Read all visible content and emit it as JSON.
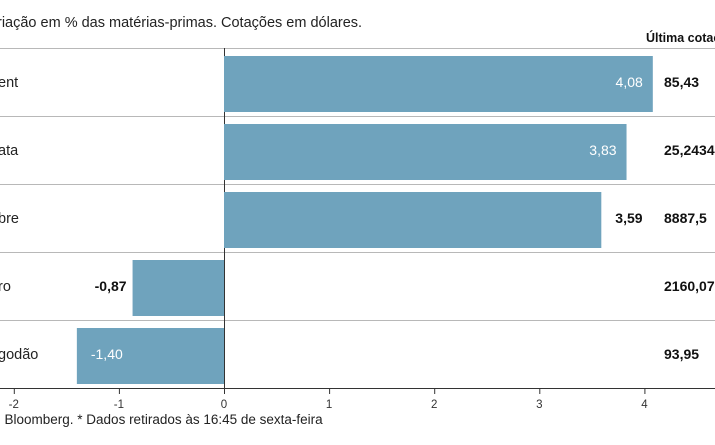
{
  "header": {
    "subtitle": "riação em % das matérias-primas. Cotações em dólares.",
    "quote_column_title": "Última cotaç"
  },
  "footer": {
    "source": ": Bloomberg.  * Dados retirados às 16:45 de sexta-feira"
  },
  "colors": {
    "bar": "#6fa3bd",
    "grid": "#b8b8b8",
    "axis": "#333333"
  },
  "chart_data": {
    "type": "bar",
    "orientation": "horizontal",
    "categories": [
      "ent",
      "ata",
      "bre",
      "ro",
      "godão"
    ],
    "values": [
      4.08,
      3.83,
      3.59,
      -0.87,
      -1.4
    ],
    "value_labels": [
      "4,08",
      "3,83",
      "3,59",
      "-0,87",
      "-1,40"
    ],
    "last_quotes": [
      "85,43",
      "25,2434",
      "8887,5",
      "2160,07",
      "93,95"
    ],
    "xlim": [
      -2.1,
      4.7
    ],
    "xticks": [
      -2,
      -1,
      0,
      1,
      2,
      3,
      4
    ],
    "xtick_labels": [
      "-2",
      "-1",
      "0",
      "1",
      "2",
      "3",
      "4"
    ],
    "grid": "horizontal separators between categories",
    "legend": "none"
  }
}
